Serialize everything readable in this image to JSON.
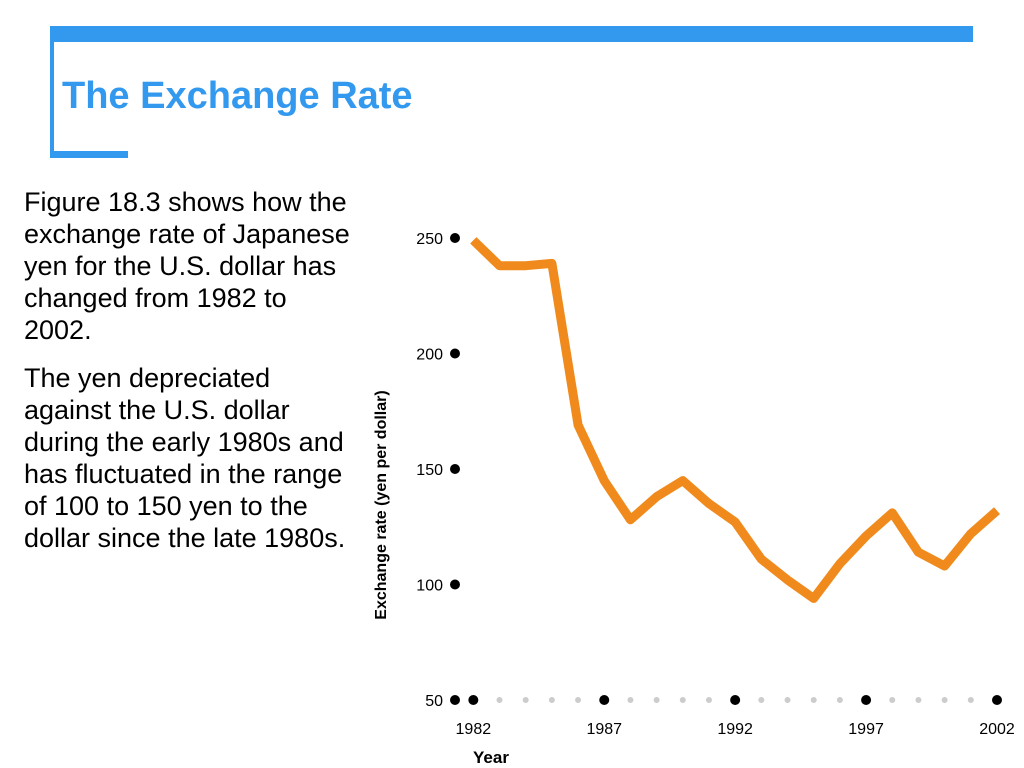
{
  "slide": {
    "title": "The Exchange Rate",
    "paragraphs": [
      "Figure 18.3 shows how the exchange rate of Japanese yen for the U.S. dollar has changed from 1982 to 2002.",
      "The yen depreciated against the U.S. dollar during the early 1980s and has fluctuated in the range of 100 to 150 yen to the dollar since the late 1980s."
    ]
  },
  "colors": {
    "accent": "#3399ee",
    "line": "#f08a1c",
    "text": "#000000",
    "dots": "#cccccc"
  },
  "chart_data": {
    "type": "line",
    "title": "",
    "xlabel": "Year",
    "ylabel": "Exchange rate (yen per dollar)",
    "xlim": [
      1981.3,
      2002
    ],
    "ylim": [
      50,
      250
    ],
    "yticks": [
      50,
      100,
      150,
      200,
      250
    ],
    "xticks": [
      1982,
      1987,
      1992,
      1997,
      2002
    ],
    "grid": false,
    "series": [
      {
        "x": [
          1982,
          1983,
          1984,
          1985,
          1986,
          1987,
          1988,
          1989,
          1990,
          1991,
          1992,
          1993,
          1994,
          1995,
          1996,
          1997,
          1998,
          1999,
          2000,
          2001,
          2002
        ],
        "values": [
          249,
          238,
          238,
          239,
          169,
          145,
          128,
          138,
          145,
          135,
          127,
          111,
          102,
          94,
          109,
          121,
          131,
          114,
          108,
          122,
          132
        ]
      }
    ]
  }
}
